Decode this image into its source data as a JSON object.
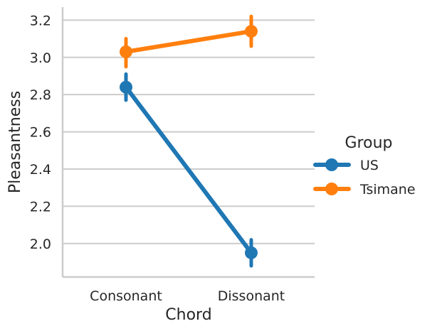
{
  "chart_data": {
    "type": "line",
    "title": "",
    "xlabel": "Chord",
    "ylabel": "Pleasantness",
    "categories": [
      "Consonant",
      "Dissonant"
    ],
    "ylim": [
      1.82,
      3.27
    ],
    "yticks": [
      "2.0",
      "2.2",
      "2.4",
      "2.6",
      "2.8",
      "3.0",
      "3.2"
    ],
    "grid": "horizontal",
    "legend": {
      "title": "Group",
      "placement": "right"
    },
    "series": [
      {
        "name": "US",
        "color": "#1f77b4",
        "values": [
          2.84,
          1.95
        ],
        "ci_low": [
          2.77,
          1.88
        ],
        "ci_high": [
          2.91,
          2.02
        ]
      },
      {
        "name": "Tsimane",
        "color": "#ff7f0e",
        "values": [
          3.03,
          3.14
        ],
        "ci_low": [
          2.95,
          3.06
        ],
        "ci_high": [
          3.1,
          3.22
        ]
      }
    ]
  }
}
